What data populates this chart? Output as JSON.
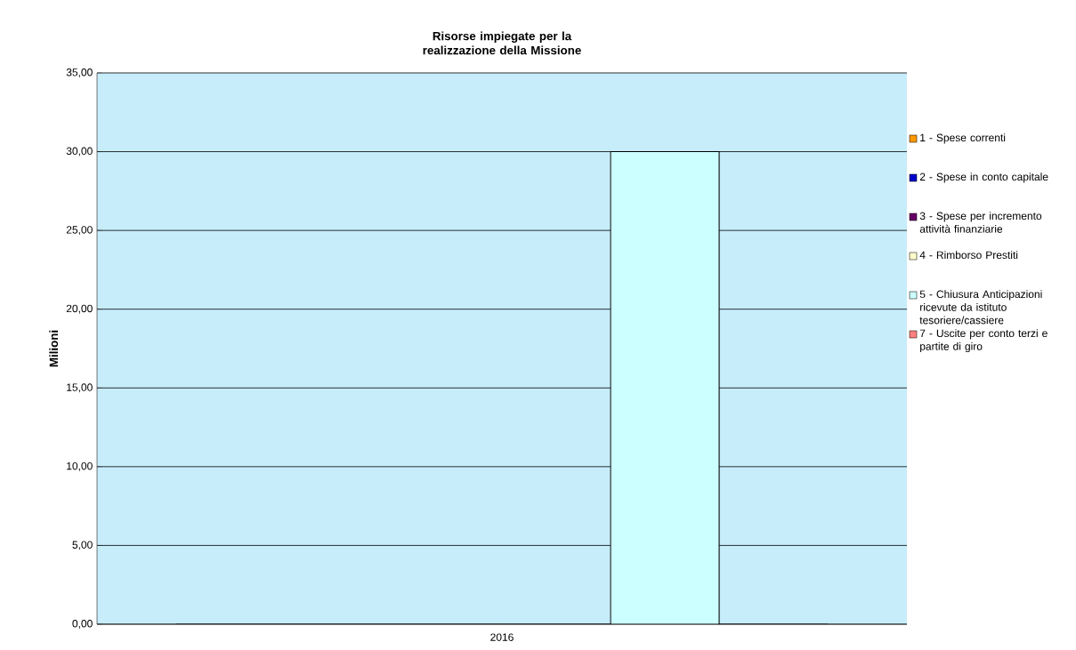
{
  "chart_data": {
    "type": "bar",
    "title": "Risorse impiegate per la realizzazione della Missione",
    "ylabel": "Milioni",
    "categories": [
      "2016"
    ],
    "series": [
      {
        "name": "1 - Spese correnti",
        "color": "#ff9900",
        "values": [
          0
        ]
      },
      {
        "name": "2 - Spese in conto capitale",
        "color": "#0000cc",
        "values": [
          0
        ]
      },
      {
        "name": "3 - Spese per incremento attività finanziarie",
        "color": "#660066",
        "values": [
          0
        ]
      },
      {
        "name": "4 - Rimborso Prestiti",
        "color": "#ffffcc",
        "values": [
          0
        ]
      },
      {
        "name": "5 - Chiusura Anticipazioni ricevute da istituto tesoriere/cassiere",
        "color": "#ccffff",
        "values": [
          30
        ]
      },
      {
        "name": "7 - Uscite per conto terzi e partite di giro",
        "color": "#ff8080",
        "values": [
          0
        ]
      }
    ],
    "ylim": [
      0,
      35
    ],
    "yticks": [
      {
        "value": 0,
        "label": "0,00"
      },
      {
        "value": 5,
        "label": "5,00"
      },
      {
        "value": 10,
        "label": "10,00"
      },
      {
        "value": 15,
        "label": "15,00"
      },
      {
        "value": 20,
        "label": "20,00"
      },
      {
        "value": 25,
        "label": "25,00"
      },
      {
        "value": 30,
        "label": "30,00"
      },
      {
        "value": 35,
        "label": "35,00"
      }
    ],
    "grid": "y",
    "legend": "right"
  }
}
